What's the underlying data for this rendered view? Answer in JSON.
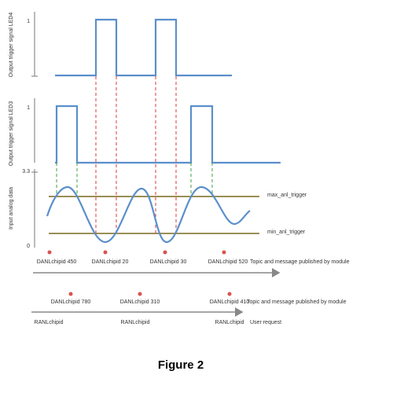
{
  "panels": [
    {
      "axis_label": "Output trigger signal LED4",
      "ticks": [
        "1"
      ]
    },
    {
      "axis_label": "Output trigger signal LED3",
      "ticks": [
        "1"
      ]
    },
    {
      "axis_label": "Input analog data",
      "ticks": [
        "3.3",
        "0"
      ]
    }
  ],
  "triggers": [
    "max_anl_trigger",
    "min_anl_trigger"
  ],
  "timelines": [
    {
      "events": [
        "DANLchipid 450",
        "DANLchipid 20",
        "DANLchipid 30",
        "DANLchipid 520"
      ],
      "label": "Topic and message published by module"
    },
    {
      "events": [
        "DANLchipid 780",
        "DANLchipid 310",
        "DANLchipid 410"
      ],
      "label": "Topic and message published by module"
    },
    {
      "events": [
        "RANLchipid",
        "RANLchipid",
        "RANLchipid"
      ],
      "label": "User request"
    }
  ],
  "caption": "Figure 2"
}
